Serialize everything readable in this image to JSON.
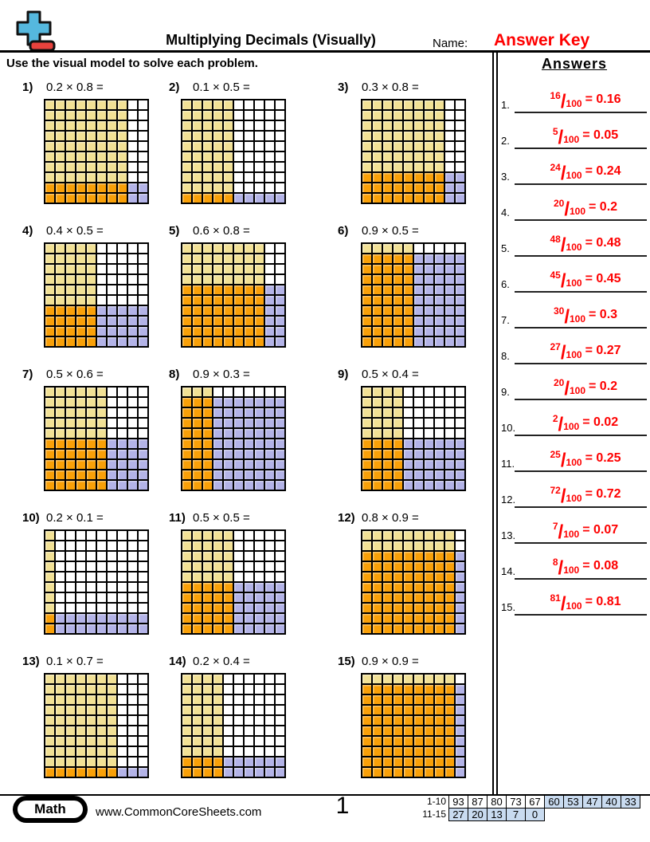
{
  "header": {
    "title": "Multiplying Decimals (Visually)",
    "name_label": "Name:",
    "answer_key": "Answer Key",
    "logo": {
      "plus_color": "#55B8DE",
      "minus_color": "#E8423D"
    }
  },
  "instruction": "Use the visual model to solve each problem.",
  "grid_colors": {
    "yellow": "#F2E195",
    "orange": "#F9A008",
    "purple": "#B3B3E7",
    "white": "#FFFFFF"
  },
  "problems": [
    {
      "num": "1)",
      "expression": "0.2 × 0.8 =",
      "rows": 2,
      "cols": 8
    },
    {
      "num": "2)",
      "expression": "0.1 × 0.5 =",
      "rows": 1,
      "cols": 5
    },
    {
      "num": "3)",
      "expression": "0.3 × 0.8 =",
      "rows": 3,
      "cols": 8
    },
    {
      "num": "4)",
      "expression": "0.4 × 0.5 =",
      "rows": 4,
      "cols": 5
    },
    {
      "num": "5)",
      "expression": "0.6 × 0.8 =",
      "rows": 6,
      "cols": 8
    },
    {
      "num": "6)",
      "expression": "0.9 × 0.5 =",
      "rows": 9,
      "cols": 5
    },
    {
      "num": "7)",
      "expression": "0.5 × 0.6 =",
      "rows": 5,
      "cols": 6
    },
    {
      "num": "8)",
      "expression": "0.9 × 0.3 =",
      "rows": 9,
      "cols": 3
    },
    {
      "num": "9)",
      "expression": "0.5 × 0.4 =",
      "rows": 5,
      "cols": 4
    },
    {
      "num": "10)",
      "expression": "0.2 × 0.1 =",
      "rows": 2,
      "cols": 1
    },
    {
      "num": "11)",
      "expression": "0.5 × 0.5 =",
      "rows": 5,
      "cols": 5
    },
    {
      "num": "12)",
      "expression": "0.8 × 0.9 =",
      "rows": 8,
      "cols": 9
    },
    {
      "num": "13)",
      "expression": "0.1 × 0.7 =",
      "rows": 1,
      "cols": 7
    },
    {
      "num": "14)",
      "expression": "0.2 × 0.4 =",
      "rows": 2,
      "cols": 4
    },
    {
      "num": "15)",
      "expression": "0.9 × 0.9 =",
      "rows": 9,
      "cols": 9
    }
  ],
  "answers_panel": {
    "heading": "Answers",
    "slash": "/",
    "items": [
      {
        "num": "1.",
        "numerator": "16",
        "denominator": "100",
        "result": "= 0.16"
      },
      {
        "num": "2.",
        "numerator": "5",
        "denominator": "100",
        "result": "= 0.05"
      },
      {
        "num": "3.",
        "numerator": "24",
        "denominator": "100",
        "result": "= 0.24"
      },
      {
        "num": "4.",
        "numerator": "20",
        "denominator": "100",
        "result": "= 0.2"
      },
      {
        "num": "5.",
        "numerator": "48",
        "denominator": "100",
        "result": "= 0.48"
      },
      {
        "num": "6.",
        "numerator": "45",
        "denominator": "100",
        "result": "= 0.45"
      },
      {
        "num": "7.",
        "numerator": "30",
        "denominator": "100",
        "result": "= 0.3"
      },
      {
        "num": "8.",
        "numerator": "27",
        "denominator": "100",
        "result": "= 0.27"
      },
      {
        "num": "9.",
        "numerator": "20",
        "denominator": "100",
        "result": "= 0.2"
      },
      {
        "num": "10.",
        "numerator": "2",
        "denominator": "100",
        "result": "= 0.02"
      },
      {
        "num": "11.",
        "numerator": "25",
        "denominator": "100",
        "result": "= 0.25"
      },
      {
        "num": "12.",
        "numerator": "72",
        "denominator": "100",
        "result": "= 0.72"
      },
      {
        "num": "13.",
        "numerator": "7",
        "denominator": "100",
        "result": "= 0.07"
      },
      {
        "num": "14.",
        "numerator": "8",
        "denominator": "100",
        "result": "= 0.08"
      },
      {
        "num": "15.",
        "numerator": "81",
        "denominator": "100",
        "result": "= 0.81"
      }
    ]
  },
  "footer": {
    "badge": "Math",
    "website": "www.CommonCoreSheets.com",
    "page_number": "1",
    "score_table": {
      "blue_color": "#C9DBF0",
      "rows": [
        {
          "label": "1-10",
          "cells": [
            {
              "v": "93",
              "blue": false
            },
            {
              "v": "87",
              "blue": false
            },
            {
              "v": "80",
              "blue": false
            },
            {
              "v": "73",
              "blue": false
            },
            {
              "v": "67",
              "blue": false
            },
            {
              "v": "60",
              "blue": true
            },
            {
              "v": "53",
              "blue": true
            },
            {
              "v": "47",
              "blue": true
            },
            {
              "v": "40",
              "blue": true
            },
            {
              "v": "33",
              "blue": true
            }
          ]
        },
        {
          "label": "11-15",
          "cells": [
            {
              "v": "27",
              "blue": true
            },
            {
              "v": "20",
              "blue": true
            },
            {
              "v": "13",
              "blue": true
            },
            {
              "v": "7",
              "blue": true
            },
            {
              "v": "0",
              "blue": true
            }
          ]
        }
      ]
    }
  }
}
